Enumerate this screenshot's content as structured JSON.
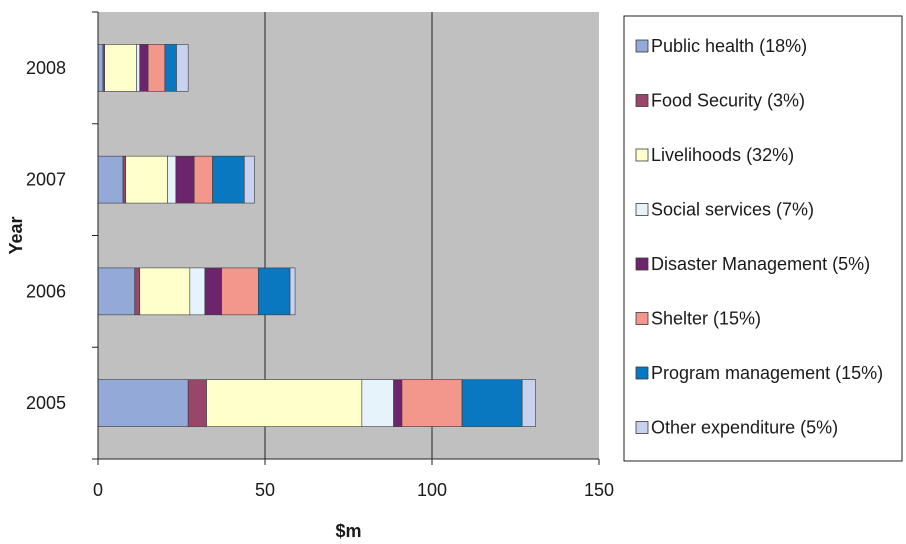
{
  "chart_data": {
    "type": "bar",
    "orientation": "horizontal",
    "stacked": true,
    "categories": [
      "2005",
      "2006",
      "2007",
      "2008"
    ],
    "xlabel": "$m",
    "ylabel": "Year",
    "xlim": [
      0,
      150
    ],
    "xticks": [
      "0",
      "50",
      "100",
      "150"
    ],
    "grid": "vertical",
    "legend_position": "right",
    "plot_background": "#c0c0c0",
    "series": [
      {
        "name": "Public health (18%)",
        "color": "#93a9d8",
        "values": [
          27,
          11,
          7.5,
          1.5
        ]
      },
      {
        "name": "Food Security (3%)",
        "color": "#98476b",
        "values": [
          5.5,
          1.5,
          0.8,
          0.5
        ]
      },
      {
        "name": "Livelihoods (32%)",
        "color": "#ffffcc",
        "values": [
          46.5,
          15,
          12.5,
          9.5
        ]
      },
      {
        "name": "Social services (7%)",
        "color": "#e6f3fb",
        "values": [
          9.5,
          4.5,
          2.5,
          1
        ]
      },
      {
        "name": "Disaster Management (5%)",
        "color": "#6c246d",
        "values": [
          2.5,
          5,
          5.5,
          2.5
        ]
      },
      {
        "name": "Shelter (15%)",
        "color": "#f3968c",
        "values": [
          18,
          11,
          5.5,
          5
        ]
      },
      {
        "name": "Program management (15%)",
        "color": "#0a78c0",
        "values": [
          18,
          9.5,
          9.5,
          3.5
        ]
      },
      {
        "name": "Other expenditure (5%)",
        "color": "#c8d2ee",
        "values": [
          4,
          1.5,
          3,
          3.5
        ]
      }
    ]
  }
}
